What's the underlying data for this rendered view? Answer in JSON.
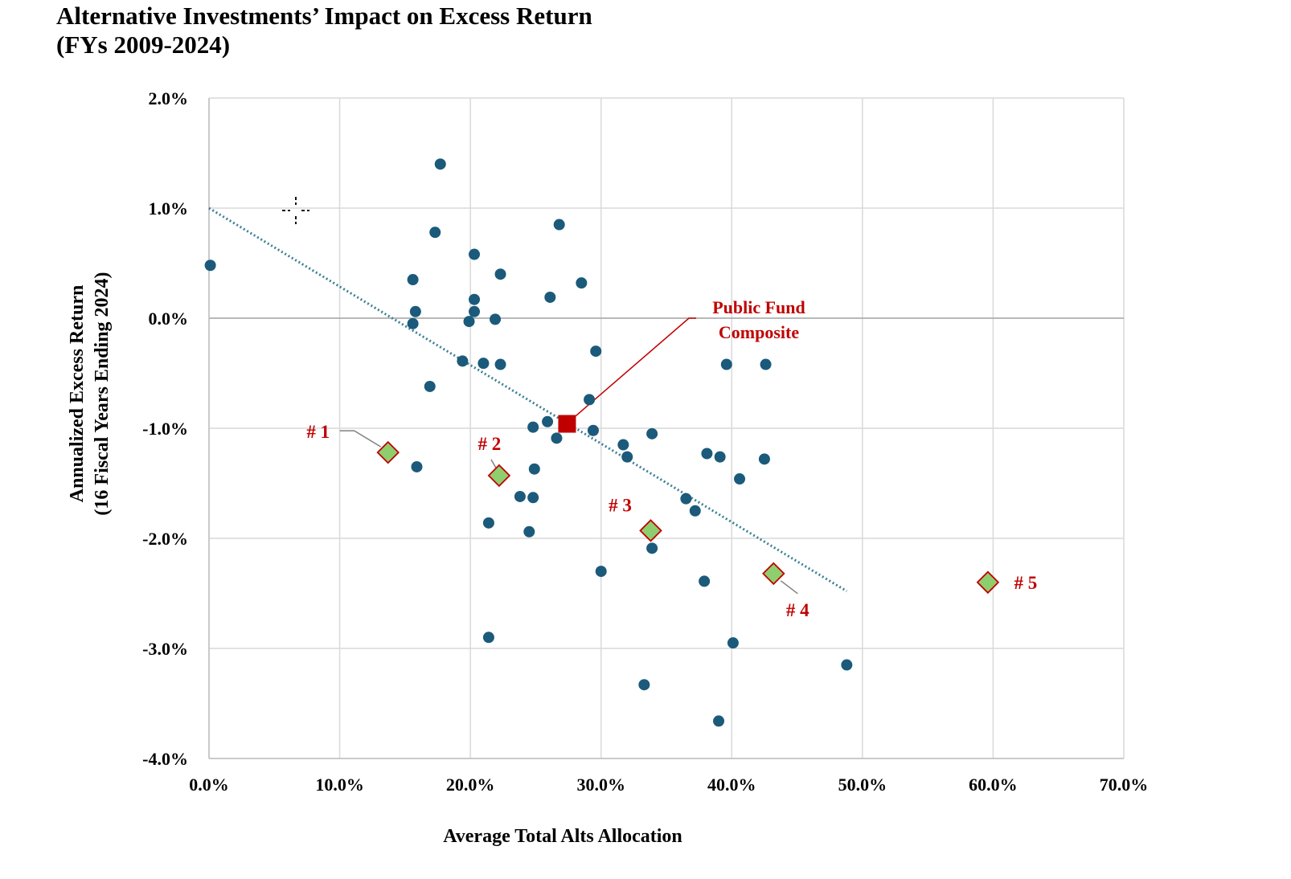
{
  "chart_data": {
    "type": "scatter",
    "title": "Alternative Investments’ Impact on Excess Return",
    "subtitle": "(FYs 2009-2024)",
    "xlabel": "Average Total Alts Allocation",
    "ylabel": [
      "Annualized Excess Return",
      "(16 Fiscal Years Ending 2024)"
    ],
    "xlim": [
      0,
      70
    ],
    "ylim": [
      -4,
      2
    ],
    "x_ticks": [
      0,
      10,
      20,
      30,
      40,
      50,
      60,
      70
    ],
    "y_ticks": [
      -4,
      -3,
      -2,
      -1,
      0,
      1,
      2
    ],
    "x_tick_labels": [
      "0.0%",
      "10.0%",
      "20.0%",
      "30.0%",
      "40.0%",
      "50.0%",
      "60.0%",
      "70.0%"
    ],
    "y_tick_labels": [
      "-4.0%",
      "-3.0%",
      "-2.0%",
      "-1.0%",
      "0.0%",
      "1.0%",
      "2.0%"
    ],
    "grid": true,
    "colors": {
      "funds": "#1b5a7a",
      "composite": "#c00000",
      "highlight_fill": "#8fce6e",
      "highlight_edge": "#c00000",
      "trend": "#3d7f95",
      "annotation": "#c00000"
    },
    "series": [
      {
        "marker": "circle",
        "points": [
          [
            0.1,
            0.48
          ],
          [
            15.6,
            0.35
          ],
          [
            15.8,
            0.06
          ],
          [
            15.6,
            -0.05
          ],
          [
            16.9,
            -0.62
          ],
          [
            15.9,
            -1.35
          ],
          [
            17.3,
            0.78
          ],
          [
            17.7,
            1.4
          ],
          [
            19.4,
            -0.39
          ],
          [
            19.9,
            -0.03
          ],
          [
            20.3,
            0.58
          ],
          [
            20.3,
            0.17
          ],
          [
            20.3,
            0.06
          ],
          [
            21.0,
            -0.41
          ],
          [
            21.9,
            -0.01
          ],
          [
            22.3,
            0.4
          ],
          [
            22.3,
            -0.42
          ],
          [
            21.4,
            -1.86
          ],
          [
            21.4,
            -2.9
          ],
          [
            23.8,
            -1.62
          ],
          [
            24.5,
            -1.94
          ],
          [
            24.8,
            -1.63
          ],
          [
            24.9,
            -1.37
          ],
          [
            24.8,
            -0.99
          ],
          [
            25.9,
            -0.94
          ],
          [
            26.1,
            0.19
          ],
          [
            26.6,
            -1.09
          ],
          [
            26.8,
            0.85
          ],
          [
            28.5,
            0.32
          ],
          [
            29.1,
            -0.74
          ],
          [
            29.4,
            -1.02
          ],
          [
            29.6,
            -0.3
          ],
          [
            30.0,
            -2.3
          ],
          [
            31.7,
            -1.15
          ],
          [
            32.0,
            -1.26
          ],
          [
            33.3,
            -3.33
          ],
          [
            33.9,
            -1.05
          ],
          [
            33.9,
            -2.09
          ],
          [
            36.5,
            -1.64
          ],
          [
            37.2,
            -1.75
          ],
          [
            37.9,
            -2.39
          ],
          [
            38.1,
            -1.23
          ],
          [
            39.1,
            -1.26
          ],
          [
            39.6,
            -0.42
          ],
          [
            40.1,
            -2.95
          ],
          [
            40.6,
            -1.46
          ],
          [
            42.6,
            -0.42
          ],
          [
            42.5,
            -1.28
          ],
          [
            39.0,
            -3.66
          ],
          [
            48.8,
            -3.15
          ]
        ]
      },
      {
        "name": "Public Fund Composite",
        "marker": "square",
        "points": [
          [
            27.4,
            -0.96
          ]
        ]
      },
      {
        "marker": "diamond",
        "points": [
          {
            "x": 13.7,
            "y": -1.22,
            "label": "# 1"
          },
          {
            "x": 22.2,
            "y": -1.43,
            "label": "# 2"
          },
          {
            "x": 33.8,
            "y": -1.93,
            "label": "# 3"
          },
          {
            "x": 43.2,
            "y": -2.32,
            "label": "# 4"
          },
          {
            "x": 59.6,
            "y": -2.4,
            "label": "# 5"
          }
        ]
      }
    ],
    "trendline": {
      "style": "dotted",
      "from": [
        0,
        1.0
      ],
      "to": [
        48.8,
        -2.48
      ]
    },
    "composite_callout": [
      "Public Fund",
      "Composite"
    ]
  }
}
